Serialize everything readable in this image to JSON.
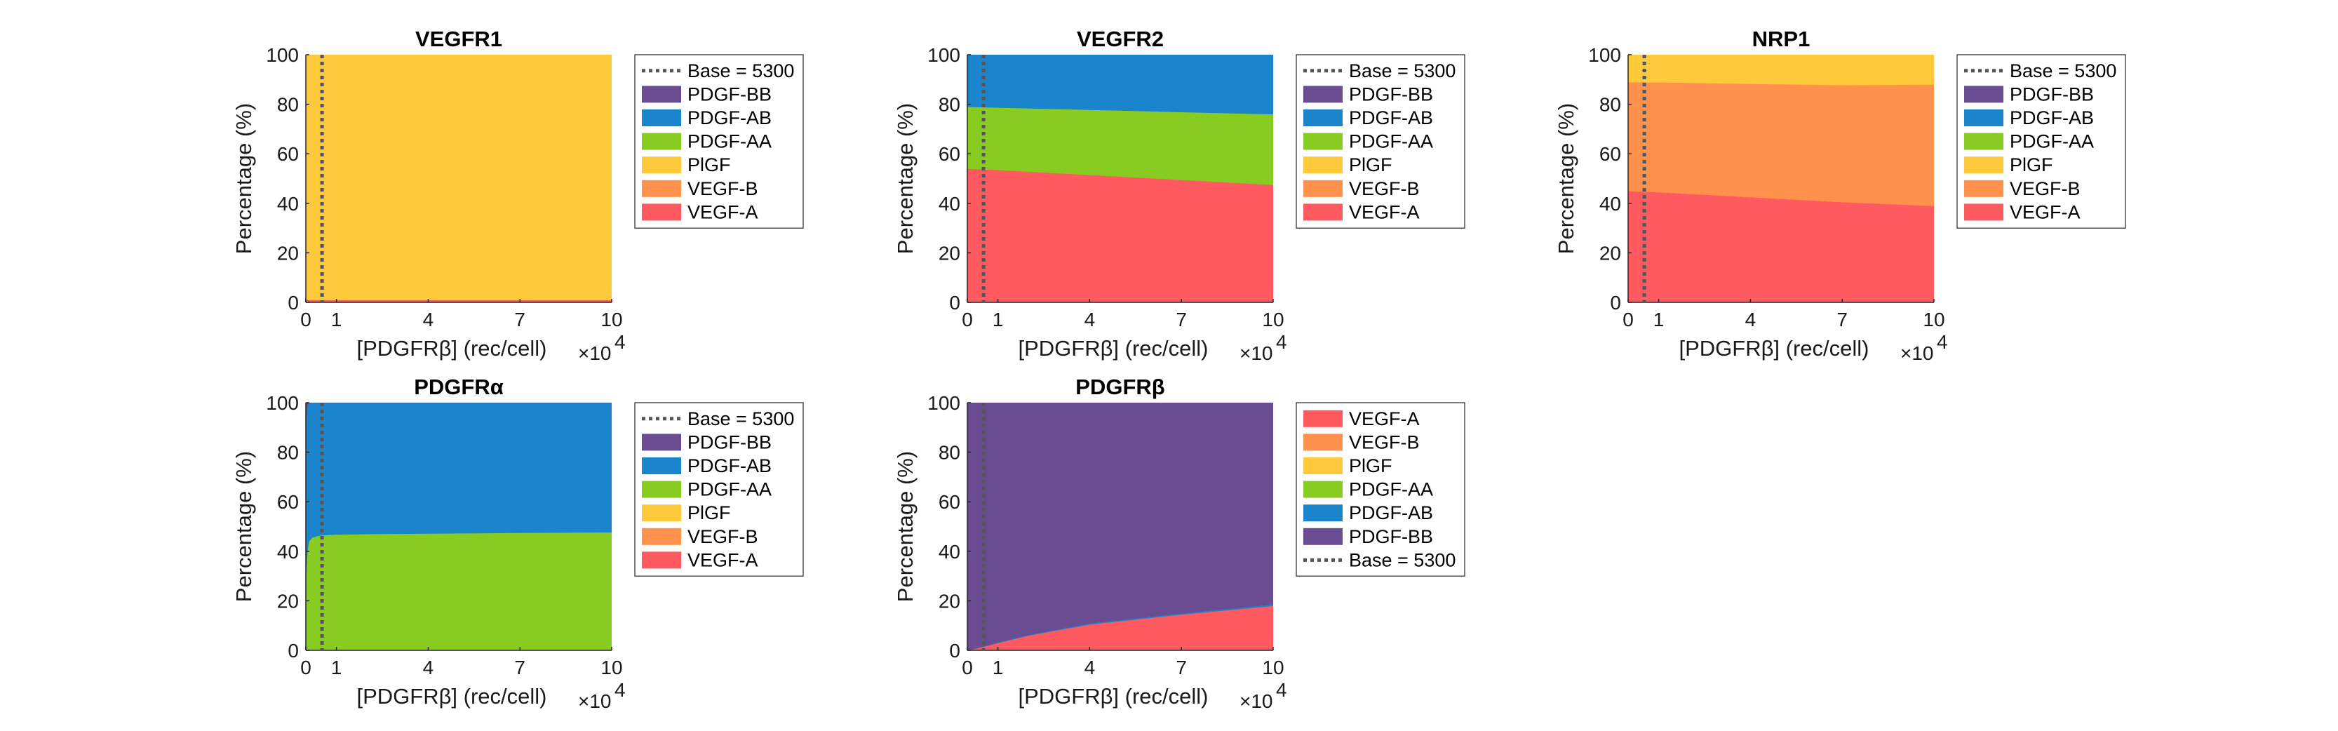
{
  "colors": {
    "VEGF-A": "#ff5a5f",
    "VEGF-B": "#ff914d",
    "PlGF": "#ffc93c",
    "PDGF-AA": "#88cc22",
    "PDGF-AB": "#1a85cc",
    "PDGF-BB": "#6a4c93",
    "base": "#555555"
  },
  "common": {
    "xlabel": "[PDGFRβ] (rec/cell)",
    "x_multiplier": "×10",
    "x_exponent": "4",
    "ylabel": "Percentage (%)",
    "baseline_label": "Base = 5300"
  },
  "chart_data": [
    {
      "type": "area",
      "title": "VEGFR1",
      "x": [
        0,
        1,
        4,
        7,
        10
      ],
      "xticks": [
        0,
        1,
        4,
        7,
        10
      ],
      "xlim": [
        0,
        10
      ],
      "ylim": [
        0,
        100
      ],
      "yticks": [
        0,
        20,
        40,
        60,
        80,
        100
      ],
      "baseline_x": 0.53,
      "legend_order": [
        "baseline",
        "PDGF-BB",
        "PDGF-AB",
        "PDGF-AA",
        "PlGF",
        "VEGF-B",
        "VEGF-A"
      ],
      "series": [
        {
          "name": "VEGF-A",
          "values": [
            1,
            1,
            1,
            1,
            1
          ]
        },
        {
          "name": "VEGF-B",
          "values": [
            0,
            0,
            0,
            0,
            0
          ]
        },
        {
          "name": "PlGF",
          "values": [
            99,
            99,
            99,
            99,
            99
          ]
        },
        {
          "name": "PDGF-AA",
          "values": [
            0,
            0,
            0,
            0,
            0
          ]
        },
        {
          "name": "PDGF-AB",
          "values": [
            0,
            0,
            0,
            0,
            0
          ]
        },
        {
          "name": "PDGF-BB",
          "values": [
            0,
            0,
            0,
            0,
            0
          ]
        }
      ]
    },
    {
      "type": "area",
      "title": "VEGFR2",
      "x": [
        0,
        1,
        4,
        7,
        10
      ],
      "xticks": [
        0,
        1,
        4,
        7,
        10
      ],
      "xlim": [
        0,
        10
      ],
      "ylim": [
        0,
        100
      ],
      "yticks": [
        0,
        20,
        40,
        60,
        80,
        100
      ],
      "baseline_x": 0.53,
      "legend_order": [
        "baseline",
        "PDGF-BB",
        "PDGF-AB",
        "PDGF-AA",
        "PlGF",
        "VEGF-B",
        "VEGF-A"
      ],
      "series": [
        {
          "name": "VEGF-A",
          "values": [
            54,
            53.5,
            51.5,
            49.5,
            47.5
          ]
        },
        {
          "name": "VEGF-B",
          "values": [
            0,
            0,
            0,
            0,
            0
          ]
        },
        {
          "name": "PlGF",
          "values": [
            0,
            0,
            0,
            0,
            0
          ]
        },
        {
          "name": "PDGF-AA",
          "values": [
            25,
            25.2,
            26.3,
            27.4,
            28.5
          ]
        },
        {
          "name": "PDGF-AB",
          "values": [
            21,
            21.3,
            22.2,
            23.1,
            24
          ]
        },
        {
          "name": "PDGF-BB",
          "values": [
            0,
            0,
            0,
            0,
            0
          ]
        }
      ]
    },
    {
      "type": "area",
      "title": "NRP1",
      "x": [
        0,
        1,
        4,
        7,
        10
      ],
      "xticks": [
        0,
        1,
        4,
        7,
        10
      ],
      "xlim": [
        0,
        10
      ],
      "ylim": [
        0,
        100
      ],
      "yticks": [
        0,
        20,
        40,
        60,
        80,
        100
      ],
      "baseline_x": 0.53,
      "legend_order": [
        "baseline",
        "PDGF-BB",
        "PDGF-AB",
        "PDGF-AA",
        "PlGF",
        "VEGF-B",
        "VEGF-A"
      ],
      "series": [
        {
          "name": "VEGF-A",
          "values": [
            45,
            44.5,
            42.5,
            40.5,
            39
          ]
        },
        {
          "name": "VEGF-B",
          "values": [
            44,
            44.4,
            45.8,
            47.3,
            49
          ]
        },
        {
          "name": "PlGF",
          "values": [
            11,
            11.1,
            11.7,
            12.2,
            12
          ]
        },
        {
          "name": "PDGF-AA",
          "values": [
            0,
            0,
            0,
            0,
            0
          ]
        },
        {
          "name": "PDGF-AB",
          "values": [
            0,
            0,
            0,
            0,
            0
          ]
        },
        {
          "name": "PDGF-BB",
          "values": [
            0,
            0,
            0,
            0,
            0
          ]
        }
      ]
    },
    {
      "type": "area",
      "title": "PDGFRα",
      "x": [
        0,
        0.05,
        0.1,
        0.2,
        0.4,
        0.53,
        1,
        2,
        4,
        7,
        10
      ],
      "xticks": [
        0,
        1,
        4,
        7,
        10
      ],
      "xlim": [
        0,
        10
      ],
      "ylim": [
        0,
        100
      ],
      "yticks": [
        0,
        20,
        40,
        60,
        80,
        100
      ],
      "baseline_x": 0.53,
      "legend_order": [
        "baseline",
        "PDGF-BB",
        "PDGF-AB",
        "PDGF-AA",
        "PlGF",
        "VEGF-B",
        "VEGF-A"
      ],
      "series": [
        {
          "name": "VEGF-A",
          "values": [
            0,
            0,
            0,
            0,
            0,
            0,
            0,
            0,
            0,
            0,
            0
          ]
        },
        {
          "name": "VEGF-B",
          "values": [
            0,
            0,
            0,
            0,
            0,
            0,
            0,
            0,
            0,
            0,
            0
          ]
        },
        {
          "name": "PlGF",
          "values": [
            0,
            0,
            0,
            0,
            0,
            0,
            0,
            0,
            0,
            0,
            0
          ]
        },
        {
          "name": "PDGF-AA",
          "values": [
            30,
            40,
            44,
            45.5,
            46.3,
            46.5,
            46.8,
            47,
            47.2,
            47.5,
            47.7
          ]
        },
        {
          "name": "PDGF-AB",
          "values": [
            62,
            59,
            55.8,
            54.5,
            53.7,
            53.5,
            53.2,
            53,
            52.8,
            52.5,
            52.3
          ]
        },
        {
          "name": "PDGF-BB",
          "values": [
            8,
            1,
            0.2,
            0,
            0,
            0,
            0,
            0,
            0,
            0,
            0
          ]
        }
      ]
    },
    {
      "type": "area",
      "title": "PDGFRβ",
      "x": [
        0,
        0.53,
        1,
        2,
        4,
        7,
        10
      ],
      "xticks": [
        0,
        1,
        4,
        7,
        10
      ],
      "xlim": [
        0,
        10
      ],
      "ylim": [
        0,
        100
      ],
      "yticks": [
        0,
        20,
        40,
        60,
        80,
        100
      ],
      "baseline_x": 0.53,
      "legend_order": [
        "VEGF-A",
        "VEGF-B",
        "PlGF",
        "PDGF-AA",
        "PDGF-AB",
        "PDGF-BB",
        "baseline"
      ],
      "series": [
        {
          "name": "VEGF-A",
          "values": [
            0,
            1.5,
            3,
            6,
            10.5,
            14.5,
            18
          ]
        },
        {
          "name": "VEGF-B",
          "values": [
            0,
            0,
            0,
            0,
            0,
            0,
            0
          ]
        },
        {
          "name": "PlGF",
          "values": [
            0,
            0,
            0,
            0,
            0,
            0,
            0
          ]
        },
        {
          "name": "PDGF-AA",
          "values": [
            0,
            0,
            0,
            0,
            0,
            0,
            0
          ]
        },
        {
          "name": "PDGF-AB",
          "values": [
            0,
            0.1,
            0.2,
            0.3,
            0.4,
            0.5,
            0.6
          ]
        },
        {
          "name": "PDGF-BB",
          "values": [
            100,
            98.4,
            96.8,
            93.7,
            89.1,
            85,
            81.4
          ]
        }
      ]
    }
  ]
}
